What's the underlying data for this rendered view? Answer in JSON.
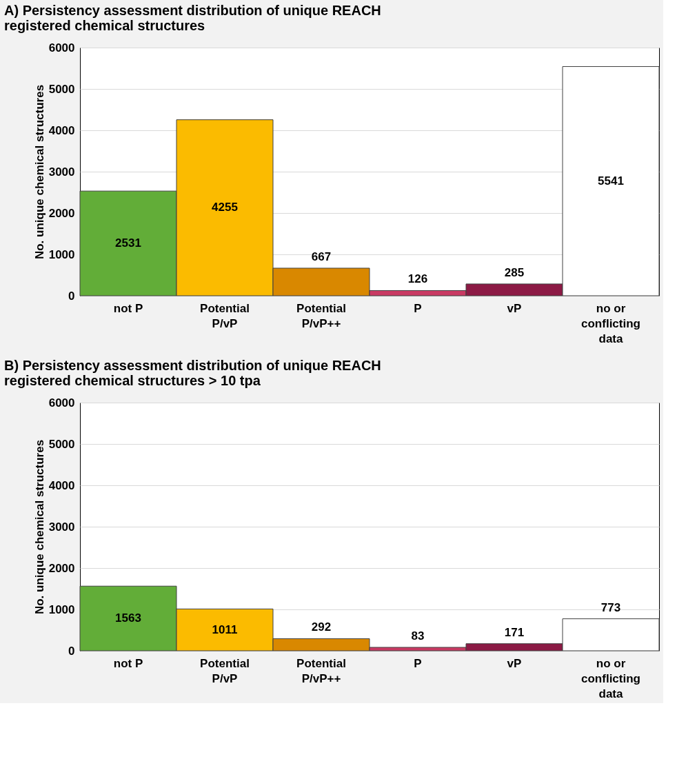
{
  "chart_data": [
    {
      "type": "bar",
      "title": "A) Persistency assessment distribution of unique REACH registered chemical structures",
      "ylabel": "No. unique chemical structures",
      "categories": [
        "not P",
        "Potential P/vP",
        "Potential P/vP++",
        "P",
        "vP",
        "no or conflicting data"
      ],
      "values": [
        2531,
        4255,
        667,
        126,
        285,
        5541
      ],
      "colors": [
        "#62ad38",
        "#fbbb00",
        "#d98800",
        "#c93a63",
        "#8c1a45",
        "#ffffff"
      ],
      "ylim": [
        0,
        6000
      ],
      "yticks": [
        0,
        1000,
        2000,
        3000,
        4000,
        5000,
        6000
      ],
      "grid": "y",
      "data_labels": true
    },
    {
      "type": "bar",
      "title": "B) Persistency assessment distribution of unique REACH registered chemical structures > 10 tpa",
      "ylabel": "No. unique chemical structures",
      "categories": [
        "not P",
        "Potential P/vP",
        "Potential P/vP++",
        "P",
        "vP",
        "no or conflicting data"
      ],
      "values": [
        1563,
        1011,
        292,
        83,
        171,
        773
      ],
      "colors": [
        "#62ad38",
        "#fbbb00",
        "#d98800",
        "#c93a63",
        "#8c1a45",
        "#ffffff"
      ],
      "ylim": [
        0,
        6000
      ],
      "yticks": [
        0,
        1000,
        2000,
        3000,
        4000,
        5000,
        6000
      ],
      "grid": "y",
      "data_labels": true
    }
  ]
}
